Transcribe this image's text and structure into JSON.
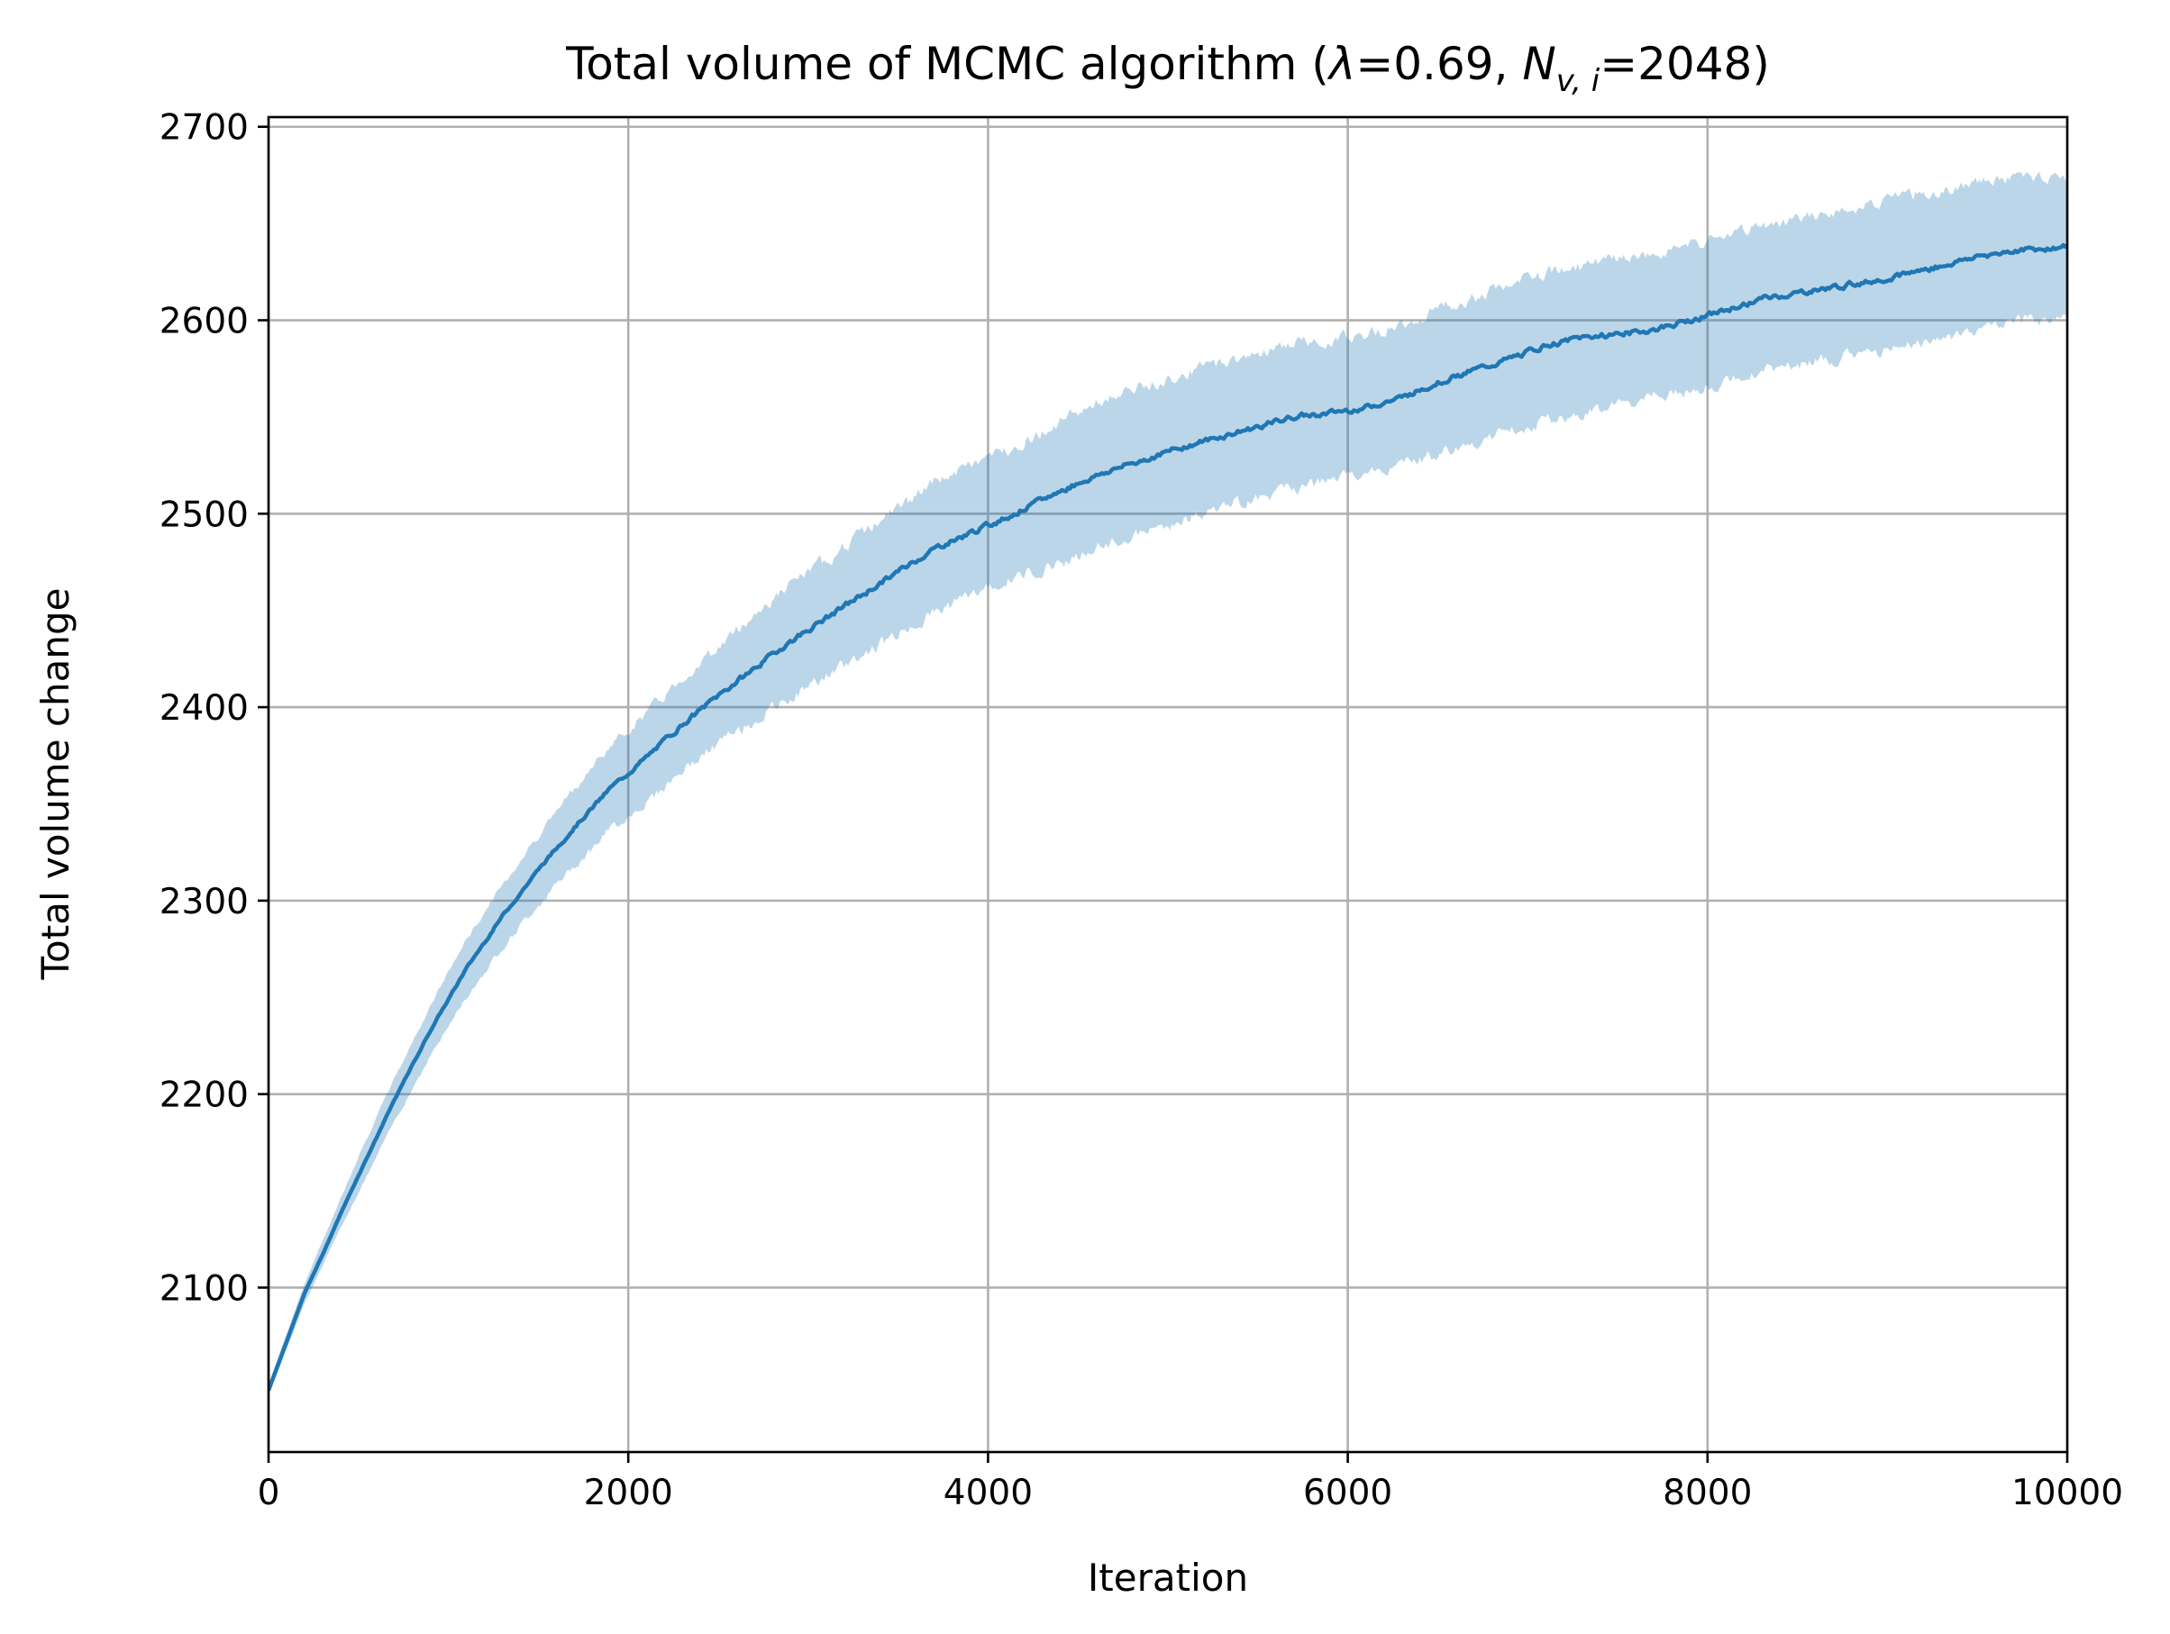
{
  "chart_data": {
    "type": "line",
    "title": {
      "prefix": "Total volume of MCMC algorithm (",
      "lambda_symbol": "λ",
      "lambda_value": "=0.69, ",
      "n_symbol": "N",
      "n_subscript": "v, i",
      "n_value": "=2048)"
    },
    "xlabel": "Iteration",
    "ylabel": "Total volume change",
    "xlim": [
      0,
      10000
    ],
    "ylim": [
      2015,
      2705
    ],
    "xticks": [
      0,
      2000,
      4000,
      6000,
      8000,
      10000
    ],
    "xtick_labels": [
      "0",
      "2000",
      "4000",
      "6000",
      "8000",
      "10000"
    ],
    "yticks": [
      2100,
      2200,
      2300,
      2400,
      2500,
      2600,
      2700
    ],
    "ytick_labels": [
      "2100",
      "2200",
      "2300",
      "2400",
      "2500",
      "2600",
      "2700"
    ],
    "grid": true,
    "colors": {
      "line": "#1f77b4",
      "band": "#1f77b4",
      "grid": "#b0b0b0"
    },
    "series": [
      {
        "x": [
          0,
          100,
          200,
          300,
          400,
          500,
          700,
          900,
          1100,
          1300,
          1500,
          1700,
          1900,
          2100,
          2300,
          2500,
          2700,
          2900,
          3100,
          3300,
          3500,
          3700,
          3900,
          4100,
          4300,
          4500,
          4700,
          4900,
          5100,
          5300,
          5500,
          5700,
          5900,
          6100,
          6300,
          6500,
          6700,
          6900,
          7100,
          7300,
          7500,
          7700,
          7900,
          8100,
          8300,
          8500,
          8700,
          8900,
          9100,
          9300,
          9500,
          9700,
          10000
        ],
        "mean": [
          2047,
          2072,
          2097,
          2117,
          2138,
          2158,
          2197,
          2233,
          2265,
          2292,
          2316,
          2338,
          2358,
          2374,
          2391,
          2406,
          2420,
          2434,
          2446,
          2458,
          2470,
          2482,
          2490,
          2498,
          2507,
          2516,
          2523,
          2529,
          2535,
          2540,
          2545,
          2550,
          2552,
          2555,
          2560,
          2568,
          2574,
          2580,
          2587,
          2591,
          2593,
          2595,
          2600,
          2605,
          2611,
          2614,
          2617,
          2620,
          2624,
          2628,
          2633,
          2636,
          2638
        ],
        "lower": [
          2044,
          2068,
          2092,
          2111,
          2131,
          2149,
          2186,
          2220,
          2250,
          2276,
          2298,
          2318,
          2337,
          2351,
          2367,
          2381,
          2393,
          2405,
          2416,
          2427,
          2438,
          2449,
          2458,
          2465,
          2472,
          2478,
          2485,
          2491,
          2497,
          2503,
          2508,
          2513,
          2517,
          2521,
          2525,
          2531,
          2536,
          2543,
          2548,
          2552,
          2556,
          2560,
          2563,
          2568,
          2574,
          2577,
          2580,
          2583,
          2587,
          2591,
          2595,
          2598,
          2602
        ],
        "upper": [
          2050,
          2076,
          2102,
          2124,
          2146,
          2168,
          2208,
          2246,
          2280,
          2308,
          2334,
          2358,
          2380,
          2397,
          2415,
          2431,
          2448,
          2463,
          2476,
          2490,
          2503,
          2516,
          2525,
          2533,
          2542,
          2553,
          2561,
          2567,
          2573,
          2578,
          2583,
          2588,
          2590,
          2593,
          2598,
          2606,
          2612,
          2618,
          2624,
          2628,
          2631,
          2634,
          2638,
          2643,
          2648,
          2652,
          2656,
          2660,
          2664,
          2667,
          2671,
          2673,
          2674
        ]
      }
    ]
  }
}
